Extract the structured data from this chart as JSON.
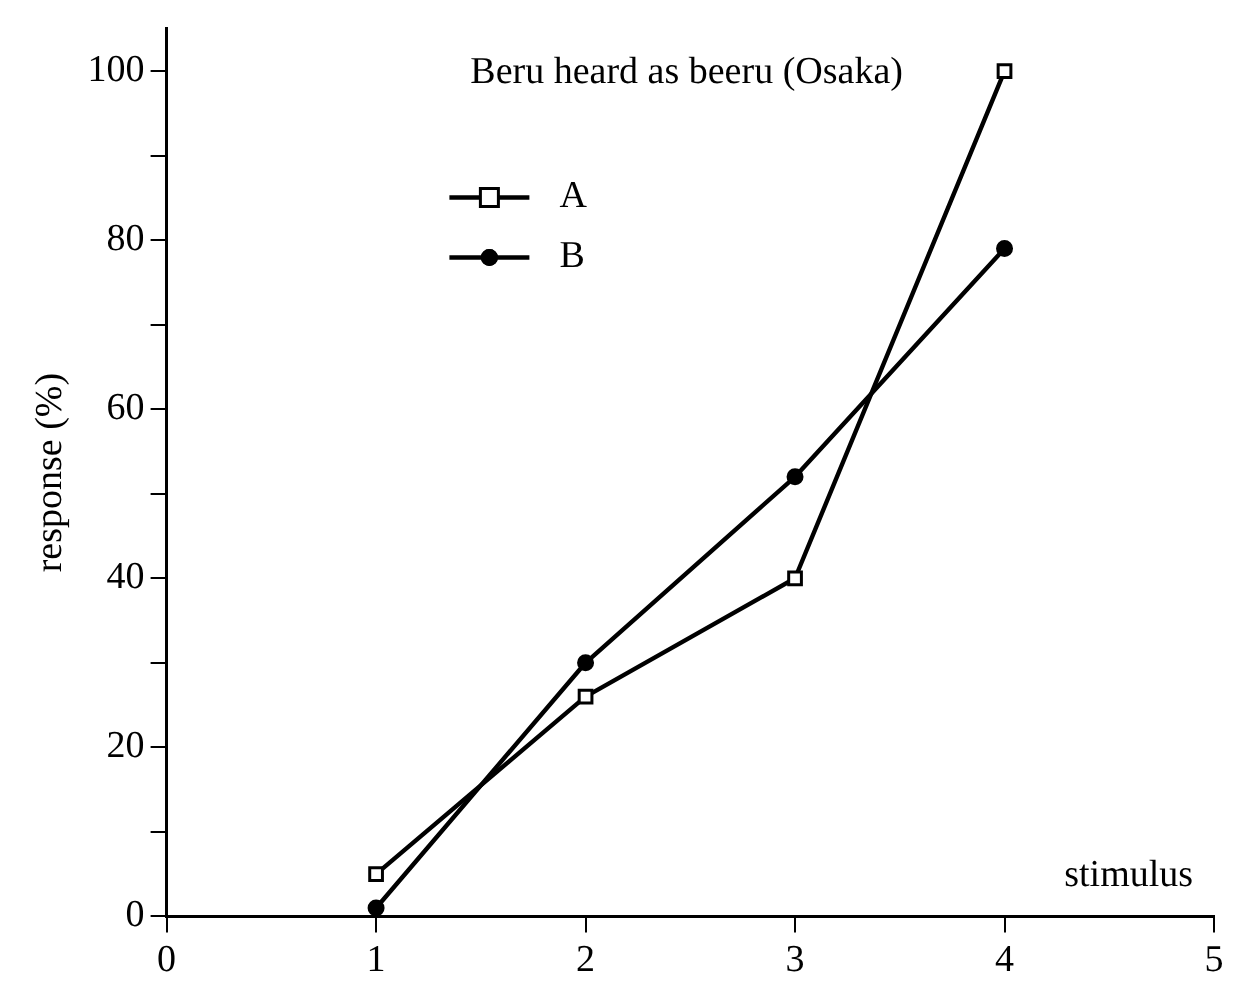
{
  "chart_data": {
    "type": "line",
    "title": "Beru heard as beeru (Osaka)",
    "xlabel": "stimulus",
    "ylabel": "response (%)",
    "x": [
      1,
      2,
      3,
      4
    ],
    "series": [
      {
        "name": "A",
        "color": "#000000",
        "marker": "square",
        "values": [
          5,
          26,
          40,
          100
        ]
      },
      {
        "name": "B",
        "color": "#000000",
        "marker": "circle",
        "values": [
          1,
          30,
          52,
          79
        ]
      }
    ],
    "xlim": [
      0,
      5
    ],
    "xticks": [
      0,
      1,
      2,
      3,
      4,
      5
    ],
    "ylim": [
      0,
      105
    ],
    "yticks": [
      0,
      {
        "value": 10,
        "label": null
      },
      20,
      {
        "value": 30,
        "label": null
      },
      40,
      {
        "value": 50,
        "label": null
      },
      60,
      {
        "value": 70,
        "label": null
      },
      80,
      {
        "value": 90,
        "label": null
      },
      100
    ],
    "grid": false,
    "legend": "top left",
    "line_style": "solid"
  }
}
